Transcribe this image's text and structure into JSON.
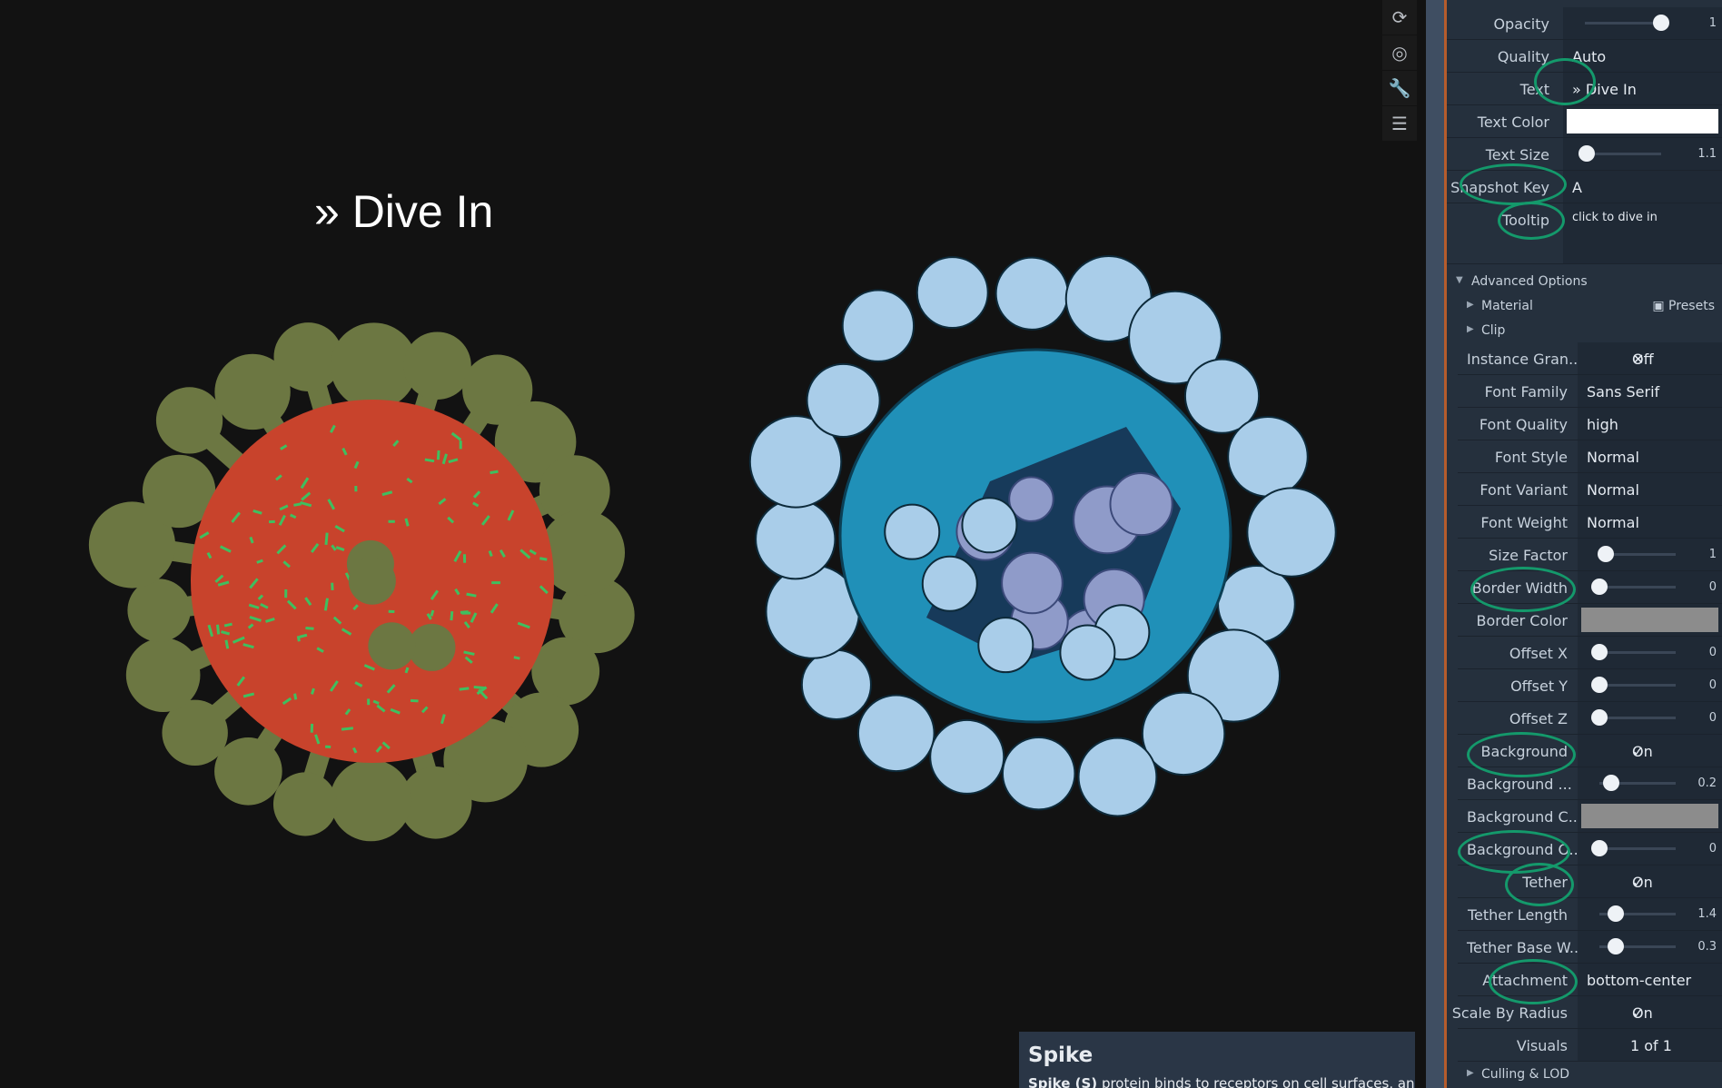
{
  "viewport": {
    "overlay_text": "» Dive In",
    "toolbar": [
      {
        "name": "refresh-icon",
        "glyph": "⟳"
      },
      {
        "name": "target-icon",
        "glyph": "◎"
      },
      {
        "name": "wrench-icon",
        "glyph": "🔧"
      },
      {
        "name": "sliders-icon",
        "glyph": "☰"
      }
    ],
    "description": {
      "title": "Spike",
      "bold_text": "Spike (S)",
      "text": " protein binds to receptors on cell surfaces, and is a"
    }
  },
  "panel": {
    "opacity": {
      "label": "Opacity",
      "value": "1",
      "level": 1.0
    },
    "quality": {
      "label": "Quality",
      "value": "Auto"
    },
    "text": {
      "label": "Text",
      "value": "» Dive In"
    },
    "text_color": {
      "label": "Text Color",
      "color": "#ffffff"
    },
    "text_size": {
      "label": "Text Size",
      "value": "1.1",
      "level": 0.02
    },
    "snapshot_key": {
      "label": "Snapshot Key",
      "value": "A"
    },
    "tooltip": {
      "label": "Tooltip",
      "value": "click to dive in"
    },
    "advanced_options": "Advanced Options",
    "material": "Material",
    "presets": "Presets",
    "clip": "Clip",
    "instance_granularity": {
      "label": "Instance Gran...",
      "value": "Off",
      "icon": "close-icon"
    },
    "font_family": {
      "label": "Font Family",
      "value": "Sans Serif"
    },
    "font_quality": {
      "label": "Font Quality",
      "value": "high"
    },
    "font_style": {
      "label": "Font Style",
      "value": "Normal"
    },
    "font_variant": {
      "label": "Font Variant",
      "value": "Normal"
    },
    "font_weight": {
      "label": "Font Weight",
      "value": "Normal"
    },
    "size_factor": {
      "label": "Size Factor",
      "value": "1",
      "level": 0.08
    },
    "border_width": {
      "label": "Border Width",
      "value": "0",
      "level": 0.0
    },
    "border_color": {
      "label": "Border Color",
      "color": "#8c8c8c"
    },
    "offset_x": {
      "label": "Offset X",
      "value": "0",
      "level": 0.0
    },
    "offset_y": {
      "label": "Offset Y",
      "value": "0",
      "level": 0.0
    },
    "offset_z": {
      "label": "Offset Z",
      "value": "0",
      "level": 0.0
    },
    "background": {
      "label": "Background",
      "value": "On",
      "icon": "check-icon"
    },
    "background_margin": {
      "label": "Background ...",
      "value": "0.2",
      "level": 0.15
    },
    "background_color": {
      "label": "Background C...",
      "color": "#8c8c8c"
    },
    "background_opacity": {
      "label": "Background O...",
      "value": "0",
      "level": 0.0
    },
    "tether": {
      "label": "Tether",
      "value": "On",
      "icon": "check-icon"
    },
    "tether_length": {
      "label": "Tether Length",
      "value": "1.4",
      "level": 0.22
    },
    "tether_base_width": {
      "label": "Tether Base W...",
      "value": "0.3",
      "level": 0.22
    },
    "attachment": {
      "label": "Attachment",
      "value": "bottom-center"
    },
    "scale_by_radius": {
      "label": "Scale By Radius",
      "value": "On",
      "icon": "check-icon"
    },
    "visuals": {
      "label": "Visuals",
      "value": "1 of 1"
    },
    "culling_lod": "Culling & LOD"
  },
  "colors": {
    "background": "#121212",
    "virus_body": "#c8432c",
    "virus_spots": "#3fbf5f",
    "virus_spikes": "#6c7742",
    "cutaway_shell": "#2090b8",
    "cutaway_spikes": "#a9cde9",
    "cutaway_interior": "#8f9bc9",
    "panel_bg": "#25303d",
    "accent": "#b65c2c",
    "highlight": "#14996b"
  }
}
